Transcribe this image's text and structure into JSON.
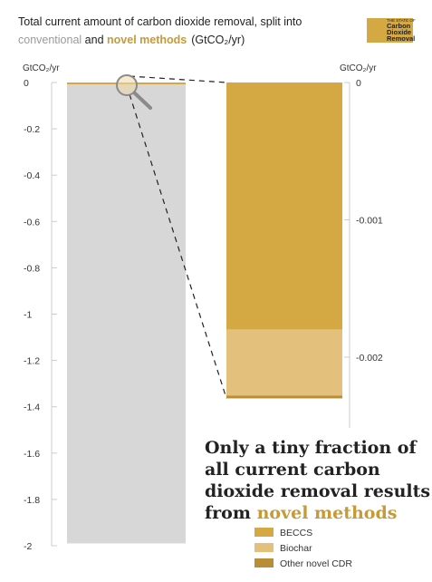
{
  "title": {
    "line1": "Total current amount of carbon dioxide removal, split into",
    "conventional": "conventional",
    "and": " and ",
    "novel": "novel methods",
    "unit": "(GtCO₂/yr)"
  },
  "logo": {
    "line1": "THE STATE OF",
    "line2": "Carbon",
    "line3": "Dioxide",
    "line4": "Removal"
  },
  "colors": {
    "conventional": "#d7d7d7",
    "beccs": "#d4a843",
    "biochar": "#e3c17d",
    "other": "#b88d35",
    "conventional_text": "#9a9a9a",
    "novel_text": "#c79a36",
    "axis": "#cccccc"
  },
  "headline": {
    "line1": "Only a tiny fraction of",
    "line2": "all current carbon",
    "line3": "dioxide removal results",
    "line4_prefix": "from ",
    "line4_highlight": "novel methods"
  },
  "chart_data": [
    {
      "type": "bar",
      "ylabel": "GtCO₂/yr",
      "ylim": [
        -2,
        0
      ],
      "ticks": [
        0,
        -0.2,
        -0.4,
        -0.6,
        -0.8,
        -1,
        -1.2,
        -1.4,
        -1.6,
        -1.8,
        -2
      ],
      "tick_labels": [
        "0",
        "-0.2",
        "-0.4",
        "-0.6",
        "-0.8",
        "-1",
        "-1.2",
        "-1.4",
        "-1.6",
        "-1.8",
        "-2"
      ],
      "series": [
        {
          "name": "conventional",
          "values": [
            -1.99
          ]
        },
        {
          "name": "novel methods",
          "values": [
            -0.0023
          ]
        }
      ]
    },
    {
      "type": "bar",
      "stacked": true,
      "ylabel": "GtCO₂/yr",
      "ylim": [
        -0.0025,
        0
      ],
      "ticks": [
        0,
        -0.001,
        -0.002
      ],
      "tick_labels": [
        "0",
        "-0.001",
        "-0.002"
      ],
      "series": [
        {
          "name": "BECCS",
          "values": [
            -0.0018
          ]
        },
        {
          "name": "Biochar",
          "values": [
            -0.00048
          ]
        },
        {
          "name": "Other novel CDR",
          "values": [
            -2e-05
          ]
        }
      ]
    }
  ]
}
